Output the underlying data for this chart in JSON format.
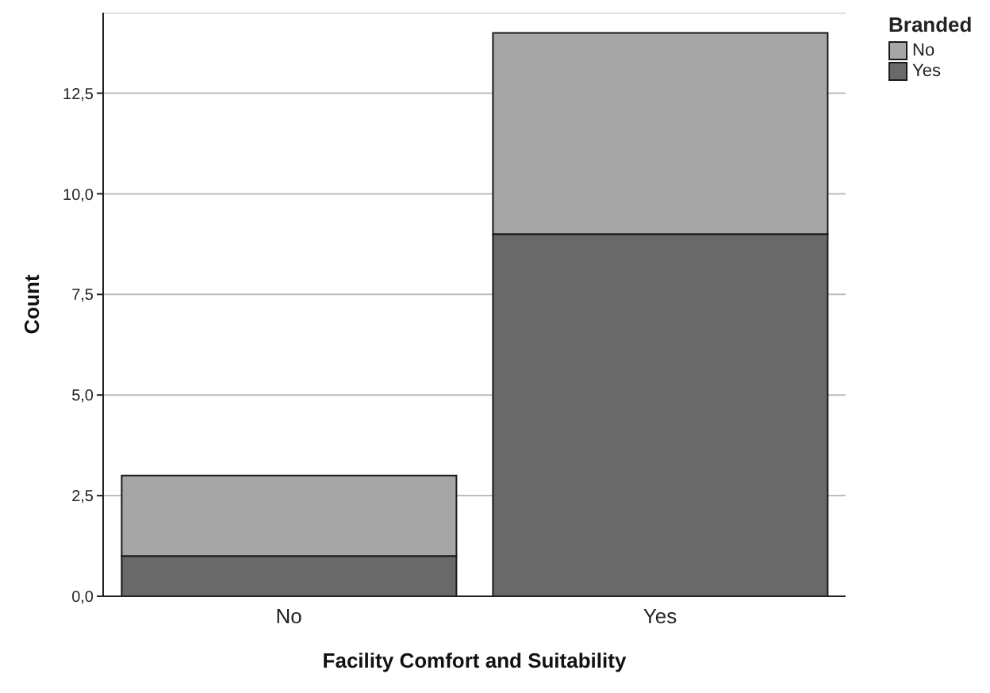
{
  "chart_data": {
    "type": "bar",
    "stacked": true,
    "xlabel": "Facility Comfort and Suitability",
    "ylabel": "Count",
    "legend_title": "Branded",
    "categories": [
      "No",
      "Yes"
    ],
    "series": [
      {
        "name": "Yes",
        "color": "#696969",
        "values": [
          1,
          9
        ]
      },
      {
        "name": "No",
        "color": "#a6a6a6",
        "values": [
          2,
          5
        ]
      }
    ],
    "ylim": [
      0,
      14.5
    ],
    "yticks": [
      {
        "value": 0,
        "label": "0,0"
      },
      {
        "value": 2.5,
        "label": "2,5"
      },
      {
        "value": 5,
        "label": "5,0"
      },
      {
        "value": 7.5,
        "label": "7,5"
      },
      {
        "value": 10,
        "label": "10,0"
      },
      {
        "value": 12.5,
        "label": "12,5"
      }
    ],
    "grid": "y",
    "legend": "top right"
  }
}
